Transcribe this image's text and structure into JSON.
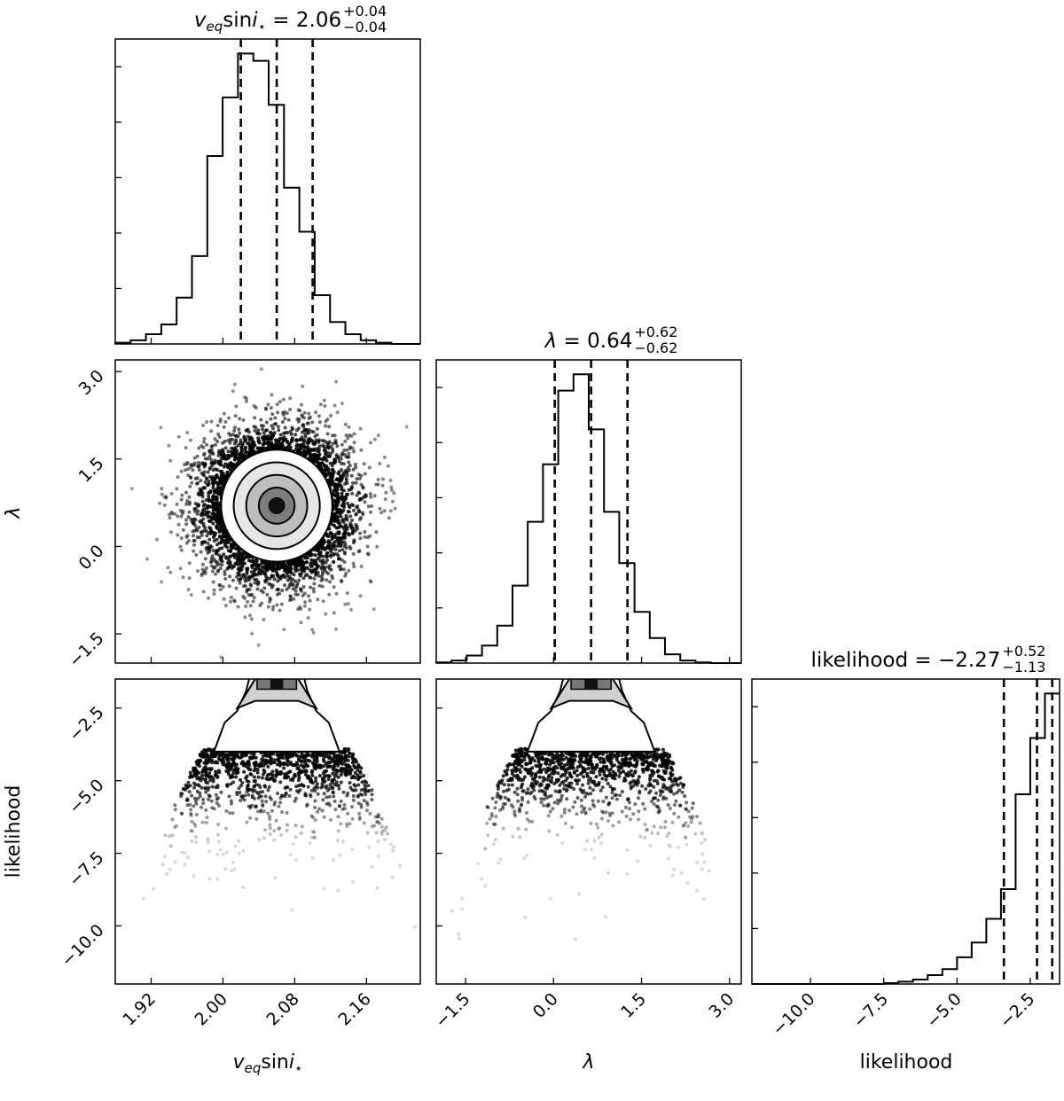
{
  "chart_data": {
    "type": "corner",
    "parameters": [
      {
        "key": "vsini",
        "label_html": "<tspan font-style='italic'>v</tspan><tspan font-style='italic' baseline-shift='sub' font-size='15'>eq</tspan>sin<tspan font-style='italic'>i</tspan><tspan baseline-shift='sub' font-size='15'>⋆</tspan>",
        "title": {
          "prefix": "v_eq sin i⋆ = ",
          "value": "2.06",
          "plus": "+0.04",
          "minus": "−0.04"
        },
        "range": [
          1.88,
          2.22
        ],
        "ticks": [
          1.92,
          2.0,
          2.08,
          2.16
        ],
        "tick_labels": [
          "1.92",
          "2.00",
          "2.08",
          "2.16"
        ],
        "quantiles": [
          2.02,
          2.06,
          2.1
        ],
        "histogram": {
          "bin_edges": [
            1.88,
            1.8971,
            1.9142,
            1.9313,
            1.9484,
            1.9655,
            1.9826,
            1.9997,
            2.0168,
            2.0339,
            2.051,
            2.0681,
            2.0852,
            2.1023,
            2.1194,
            2.1365,
            2.1536,
            2.1707,
            2.1878,
            2.2049,
            2.22
          ],
          "counts": [
            0.5,
            1.5,
            4,
            8,
            19,
            36,
            77,
            101,
            119,
            116,
            98,
            64,
            46,
            20,
            9,
            4,
            1.5,
            0.5,
            0,
            0
          ]
        }
      },
      {
        "key": "lambda",
        "label_html": "<tspan font-style='italic'>λ</tspan>",
        "title": {
          "prefix": "λ = ",
          "value": "0.64",
          "plus": "+0.62",
          "minus": "−0.62"
        },
        "range": [
          -2.0,
          3.2
        ],
        "ticks": [
          -1.5,
          0.0,
          1.5,
          3.0
        ],
        "tick_labels": [
          "−1.5",
          "0.0",
          "1.5",
          "3.0"
        ],
        "quantiles": [
          0.02,
          0.64,
          1.26
        ],
        "histogram": {
          "bin_edges": [
            -2.0,
            -1.74,
            -1.48,
            -1.22,
            -0.96,
            -0.7,
            -0.44,
            -0.18,
            0.08,
            0.34,
            0.6,
            0.86,
            1.12,
            1.38,
            1.64,
            1.9,
            2.16,
            2.42,
            2.68,
            2.94,
            3.2
          ],
          "counts": [
            0.5,
            2,
            6,
            14,
            30,
            62,
            113,
            159,
            218,
            231,
            187,
            121,
            80,
            41,
            20,
            7,
            2,
            0.5,
            0,
            0
          ]
        }
      },
      {
        "key": "likelihood",
        "label_html": "likelihood",
        "title": {
          "prefix": "likelihood = ",
          "value": "−2.27",
          "plus": "+0.52",
          "minus": "−1.13"
        },
        "range": [
          -12.0,
          -1.5
        ],
        "ticks": [
          -10.0,
          -7.5,
          -5.0,
          -2.5
        ],
        "tick_labels": [
          "−10.0",
          "−7.5",
          "−5.0",
          "−2.5"
        ],
        "quantiles": [
          -3.4,
          -2.27,
          -1.75
        ],
        "histogram": {
          "bin_edges": [
            -12.0,
            -11.5,
            -11.0,
            -10.5,
            -10.0,
            -9.5,
            -9.0,
            -8.5,
            -8.0,
            -7.5,
            -7.0,
            -6.5,
            -6.0,
            -5.5,
            -5.0,
            -4.5,
            -4.0,
            -3.5,
            -3.0,
            -2.5,
            -2.0,
            -1.5
          ],
          "counts": [
            0,
            0,
            0,
            0,
            0,
            0,
            0,
            0,
            0,
            0.3,
            0.8,
            1.5,
            3,
            5,
            9,
            14,
            22,
            32,
            64,
            83,
            98
          ]
        }
      }
    ],
    "correlations": {
      "lambda_vs_vsini": {
        "center": [
          2.06,
          0.7
        ],
        "sd": [
          0.04,
          0.62
        ]
      },
      "likelihood_quadratic": {
        "a_vsini": 330,
        "a_lambda": 1.35
      }
    },
    "contour_levels": [
      "0.5",
      "1.0",
      "1.5",
      "2.0"
    ],
    "grid": false,
    "colors": {
      "line": "#000000",
      "background": "#ffffff"
    }
  }
}
